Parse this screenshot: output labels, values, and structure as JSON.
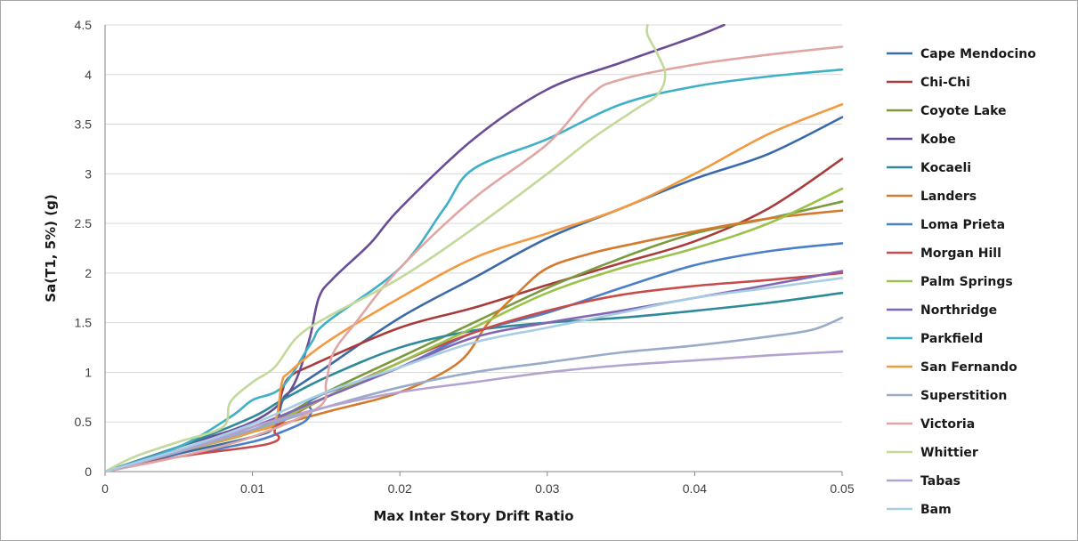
{
  "chart_data": {
    "type": "line",
    "xlabel": "Max Inter Story Drift Ratio",
    "ylabel": "Sa(T1, 5%) (g)",
    "xlim": [
      0,
      0.05
    ],
    "ylim": [
      0,
      4.5
    ],
    "x_ticks": [
      "0",
      "0.01",
      "0.02",
      "0.03",
      "0.04",
      "0.05"
    ],
    "y_ticks": [
      "0",
      "0.5",
      "1",
      "1.5",
      "2",
      "2.5",
      "3",
      "3.5",
      "4",
      "4.5"
    ],
    "grid": "horizontal",
    "legend": "right",
    "series": [
      {
        "name": "Cape Mendocino",
        "color": "#3b6aa8",
        "points": [
          [
            0,
            0
          ],
          [
            0.005,
            0.18
          ],
          [
            0.01,
            0.35
          ],
          [
            0.0115,
            0.45
          ],
          [
            0.012,
            0.7
          ],
          [
            0.0125,
            0.8
          ],
          [
            0.015,
            1.05
          ],
          [
            0.02,
            1.55
          ],
          [
            0.025,
            1.95
          ],
          [
            0.03,
            2.35
          ],
          [
            0.035,
            2.65
          ],
          [
            0.04,
            2.95
          ],
          [
            0.045,
            3.2
          ],
          [
            0.05,
            3.57
          ]
        ]
      },
      {
        "name": "Chi-Chi",
        "color": "#a93b3b",
        "points": [
          [
            0,
            0
          ],
          [
            0.005,
            0.2
          ],
          [
            0.01,
            0.4
          ],
          [
            0.0115,
            0.5
          ],
          [
            0.012,
            0.8
          ],
          [
            0.0125,
            0.95
          ],
          [
            0.014,
            1.07
          ],
          [
            0.02,
            1.45
          ],
          [
            0.025,
            1.65
          ],
          [
            0.03,
            1.88
          ],
          [
            0.035,
            2.1
          ],
          [
            0.04,
            2.32
          ],
          [
            0.045,
            2.65
          ],
          [
            0.05,
            3.15
          ]
        ]
      },
      {
        "name": "Coyote Lake",
        "color": "#7a9a3d",
        "points": [
          [
            0,
            0
          ],
          [
            0.005,
            0.2
          ],
          [
            0.01,
            0.42
          ],
          [
            0.012,
            0.55
          ],
          [
            0.015,
            0.8
          ],
          [
            0.02,
            1.15
          ],
          [
            0.025,
            1.5
          ],
          [
            0.03,
            1.85
          ],
          [
            0.035,
            2.15
          ],
          [
            0.04,
            2.4
          ],
          [
            0.045,
            2.55
          ],
          [
            0.05,
            2.72
          ]
        ]
      },
      {
        "name": "Kobe",
        "color": "#6b4d96",
        "points": [
          [
            0,
            0
          ],
          [
            0.005,
            0.25
          ],
          [
            0.01,
            0.5
          ],
          [
            0.0125,
            0.8
          ],
          [
            0.0138,
            1.3
          ],
          [
            0.0145,
            1.75
          ],
          [
            0.0155,
            1.95
          ],
          [
            0.018,
            2.3
          ],
          [
            0.02,
            2.65
          ],
          [
            0.025,
            3.35
          ],
          [
            0.03,
            3.85
          ],
          [
            0.035,
            4.12
          ],
          [
            0.04,
            4.38
          ],
          [
            0.042,
            4.5
          ]
        ]
      },
      {
        "name": "Kocaeli",
        "color": "#2e8a99",
        "points": [
          [
            0,
            0
          ],
          [
            0.005,
            0.25
          ],
          [
            0.01,
            0.55
          ],
          [
            0.012,
            0.72
          ],
          [
            0.015,
            0.95
          ],
          [
            0.02,
            1.25
          ],
          [
            0.025,
            1.42
          ],
          [
            0.03,
            1.5
          ],
          [
            0.035,
            1.55
          ],
          [
            0.04,
            1.62
          ],
          [
            0.045,
            1.7
          ],
          [
            0.05,
            1.8
          ]
        ]
      },
      {
        "name": "Landers",
        "color": "#d47a2c",
        "points": [
          [
            0,
            0
          ],
          [
            0.005,
            0.2
          ],
          [
            0.01,
            0.4
          ],
          [
            0.015,
            0.6
          ],
          [
            0.02,
            0.8
          ],
          [
            0.024,
            1.1
          ],
          [
            0.026,
            1.5
          ],
          [
            0.028,
            1.8
          ],
          [
            0.03,
            2.05
          ],
          [
            0.033,
            2.2
          ],
          [
            0.036,
            2.3
          ],
          [
            0.04,
            2.42
          ],
          [
            0.045,
            2.55
          ],
          [
            0.05,
            2.63
          ]
        ]
      },
      {
        "name": "Loma Prieta",
        "color": "#4a7fc9",
        "points": [
          [
            0,
            0
          ],
          [
            0.005,
            0.15
          ],
          [
            0.01,
            0.3
          ],
          [
            0.012,
            0.4
          ],
          [
            0.0135,
            0.5
          ],
          [
            0.014,
            0.6
          ],
          [
            0.0143,
            0.75
          ],
          [
            0.02,
            1.05
          ],
          [
            0.025,
            1.4
          ],
          [
            0.03,
            1.6
          ],
          [
            0.035,
            1.85
          ],
          [
            0.04,
            2.08
          ],
          [
            0.045,
            2.22
          ],
          [
            0.05,
            2.3
          ]
        ]
      },
      {
        "name": "Morgan Hill",
        "color": "#c94a4a",
        "points": [
          [
            0,
            0
          ],
          [
            0.005,
            0.15
          ],
          [
            0.01,
            0.25
          ],
          [
            0.0115,
            0.3
          ],
          [
            0.0118,
            0.35
          ],
          [
            0.0115,
            0.4
          ],
          [
            0.012,
            0.5
          ],
          [
            0.015,
            0.75
          ],
          [
            0.02,
            1.1
          ],
          [
            0.025,
            1.4
          ],
          [
            0.03,
            1.62
          ],
          [
            0.035,
            1.78
          ],
          [
            0.04,
            1.87
          ],
          [
            0.045,
            1.93
          ],
          [
            0.05,
            2.0
          ]
        ]
      },
      {
        "name": "Palm Springs",
        "color": "#9ac24a",
        "points": [
          [
            0,
            0
          ],
          [
            0.005,
            0.2
          ],
          [
            0.01,
            0.4
          ],
          [
            0.015,
            0.75
          ],
          [
            0.02,
            1.1
          ],
          [
            0.025,
            1.45
          ],
          [
            0.03,
            1.8
          ],
          [
            0.035,
            2.05
          ],
          [
            0.04,
            2.25
          ],
          [
            0.045,
            2.5
          ],
          [
            0.05,
            2.85
          ]
        ]
      },
      {
        "name": "Northridge",
        "color": "#8066b3",
        "points": [
          [
            0,
            0
          ],
          [
            0.005,
            0.22
          ],
          [
            0.01,
            0.45
          ],
          [
            0.015,
            0.75
          ],
          [
            0.02,
            1.05
          ],
          [
            0.025,
            1.35
          ],
          [
            0.03,
            1.5
          ],
          [
            0.035,
            1.62
          ],
          [
            0.04,
            1.75
          ],
          [
            0.045,
            1.88
          ],
          [
            0.05,
            2.02
          ]
        ]
      },
      {
        "name": "Parkfield",
        "color": "#3fb0c6",
        "points": [
          [
            0,
            0
          ],
          [
            0.005,
            0.25
          ],
          [
            0.0085,
            0.55
          ],
          [
            0.01,
            0.72
          ],
          [
            0.012,
            0.85
          ],
          [
            0.014,
            1.3
          ],
          [
            0.015,
            1.5
          ],
          [
            0.02,
            2.05
          ],
          [
            0.023,
            2.65
          ],
          [
            0.025,
            3.05
          ],
          [
            0.03,
            3.35
          ],
          [
            0.035,
            3.7
          ],
          [
            0.04,
            3.88
          ],
          [
            0.045,
            3.98
          ],
          [
            0.05,
            4.05
          ]
        ]
      },
      {
        "name": "San Fernando",
        "color": "#f29a3f",
        "points": [
          [
            0,
            0
          ],
          [
            0.005,
            0.2
          ],
          [
            0.01,
            0.4
          ],
          [
            0.0115,
            0.5
          ],
          [
            0.012,
            0.9
          ],
          [
            0.0125,
            1.0
          ],
          [
            0.015,
            1.3
          ],
          [
            0.02,
            1.75
          ],
          [
            0.025,
            2.15
          ],
          [
            0.03,
            2.4
          ],
          [
            0.035,
            2.65
          ],
          [
            0.04,
            3.0
          ],
          [
            0.045,
            3.4
          ],
          [
            0.05,
            3.7
          ]
        ]
      },
      {
        "name": "Superstition",
        "color": "#9aaac9",
        "points": [
          [
            0,
            0
          ],
          [
            0.005,
            0.2
          ],
          [
            0.01,
            0.42
          ],
          [
            0.015,
            0.65
          ],
          [
            0.02,
            0.85
          ],
          [
            0.025,
            1.0
          ],
          [
            0.03,
            1.1
          ],
          [
            0.035,
            1.2
          ],
          [
            0.04,
            1.27
          ],
          [
            0.045,
            1.36
          ],
          [
            0.048,
            1.43
          ],
          [
            0.05,
            1.55
          ]
        ]
      },
      {
        "name": "Victoria",
        "color": "#e0a6a3",
        "points": [
          [
            0,
            0
          ],
          [
            0.005,
            0.15
          ],
          [
            0.01,
            0.35
          ],
          [
            0.0145,
            0.65
          ],
          [
            0.015,
            0.9
          ],
          [
            0.0155,
            1.2
          ],
          [
            0.017,
            1.5
          ],
          [
            0.02,
            2.05
          ],
          [
            0.025,
            2.75
          ],
          [
            0.03,
            3.3
          ],
          [
            0.033,
            3.8
          ],
          [
            0.035,
            3.95
          ],
          [
            0.04,
            4.1
          ],
          [
            0.045,
            4.2
          ],
          [
            0.05,
            4.28
          ]
        ]
      },
      {
        "name": "Whittier",
        "color": "#c2d99a",
        "points": [
          [
            0,
            0
          ],
          [
            0.002,
            0.15
          ],
          [
            0.005,
            0.3
          ],
          [
            0.008,
            0.45
          ],
          [
            0.0085,
            0.7
          ],
          [
            0.01,
            0.9
          ],
          [
            0.0115,
            1.05
          ],
          [
            0.013,
            1.35
          ],
          [
            0.015,
            1.55
          ],
          [
            0.02,
            1.95
          ],
          [
            0.025,
            2.45
          ],
          [
            0.03,
            3.0
          ],
          [
            0.033,
            3.35
          ],
          [
            0.036,
            3.65
          ],
          [
            0.0375,
            3.8
          ],
          [
            0.038,
            4.0
          ],
          [
            0.0375,
            4.2
          ],
          [
            0.0368,
            4.4
          ],
          [
            0.0368,
            4.5
          ]
        ]
      },
      {
        "name": "Tabas",
        "color": "#b3a3d1",
        "points": [
          [
            0,
            0
          ],
          [
            0.005,
            0.2
          ],
          [
            0.01,
            0.45
          ],
          [
            0.015,
            0.65
          ],
          [
            0.02,
            0.8
          ],
          [
            0.025,
            0.9
          ],
          [
            0.03,
            1.0
          ],
          [
            0.035,
            1.07
          ],
          [
            0.04,
            1.12
          ],
          [
            0.045,
            1.17
          ],
          [
            0.05,
            1.21
          ]
        ]
      },
      {
        "name": "Bam",
        "color": "#a6cde3",
        "points": [
          [
            0,
            0
          ],
          [
            0.005,
            0.22
          ],
          [
            0.01,
            0.48
          ],
          [
            0.015,
            0.8
          ],
          [
            0.02,
            1.05
          ],
          [
            0.025,
            1.3
          ],
          [
            0.03,
            1.45
          ],
          [
            0.035,
            1.6
          ],
          [
            0.04,
            1.75
          ],
          [
            0.045,
            1.85
          ],
          [
            0.05,
            1.95
          ]
        ]
      }
    ]
  }
}
